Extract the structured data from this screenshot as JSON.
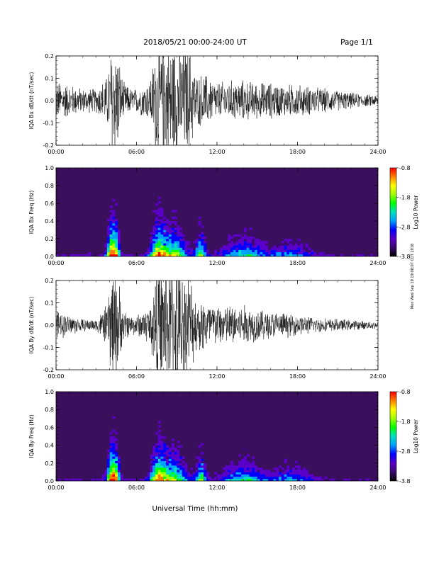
{
  "header": {
    "title": "2018/05/21  00:00-24:00 UT",
    "page": "Page 1/1"
  },
  "footer": {
    "xlabel": "Universal Time (hh:mm)"
  },
  "side_stamp": "Mon Wed Sep 19 19:08:07 CDT 2018",
  "colors": {
    "trace": "#000000",
    "spectrogram_background": "#3a0f5c",
    "colormap": [
      "#000000",
      "#3a0a6e",
      "#5a00c8",
      "#0000ff",
      "#00a0ff",
      "#00e0c0",
      "#00ff00",
      "#a0ff00",
      "#ffff00",
      "#ff8000",
      "#ff0000"
    ]
  },
  "chart_data": [
    {
      "type": "line",
      "name": "bx-dbdt",
      "ylabel": "IQA Bx dB/dt (nT/sec)",
      "ylim": [
        -0.2,
        0.2
      ],
      "yticks": [
        "-0.2",
        "-0.1",
        "0.0",
        "0.1",
        "0.2"
      ],
      "xlim": [
        0,
        24
      ],
      "xticks": [
        "00:00",
        "06:00",
        "12:00",
        "18:00",
        "24:00"
      ],
      "envelope": {
        "x_hours": [
          0,
          1,
          2,
          3,
          3.8,
          4.2,
          4.6,
          5,
          5.6,
          6,
          7,
          7.5,
          8,
          9,
          10,
          10.5,
          11,
          12,
          13,
          14,
          15,
          16,
          17,
          18,
          19,
          20,
          21,
          22,
          23,
          24
        ],
        "amplitude": [
          0.1,
          0.08,
          0.06,
          0.06,
          0.12,
          0.3,
          0.25,
          0.09,
          0.06,
          0.06,
          0.1,
          0.3,
          0.3,
          0.3,
          0.25,
          0.12,
          0.14,
          0.09,
          0.1,
          0.1,
          0.09,
          0.09,
          0.08,
          0.08,
          0.07,
          0.06,
          0.05,
          0.04,
          0.03,
          0.03
        ]
      }
    },
    {
      "type": "heatmap",
      "name": "bx-freq",
      "ylabel": "IQA Bx Freq (Hz)",
      "ylim": [
        0.0,
        1.0
      ],
      "yticks": [
        "0.0",
        "0.2",
        "0.4",
        "0.6",
        "0.8",
        "1.0"
      ],
      "xlim": [
        0,
        24
      ],
      "xticks": [
        "00:00",
        "06:00",
        "12:00",
        "18:00",
        "24:00"
      ],
      "colorbar": {
        "label": "Log10 Power",
        "range": [
          -3.8,
          -0.8
        ],
        "ticks": [
          "-0.8",
          "-1.8",
          "-2.8",
          "-3.8"
        ]
      }
    },
    {
      "type": "line",
      "name": "by-dbdt",
      "ylabel": "IQA By dB/dt (nT/sec)",
      "ylim": [
        -0.2,
        0.2
      ],
      "yticks": [
        "-0.2",
        "-0.1",
        "0.0",
        "0.1",
        "0.2"
      ],
      "xlim": [
        0,
        24
      ],
      "xticks": [
        "00:00",
        "06:00",
        "12:00",
        "18:00",
        "24:00"
      ],
      "envelope": {
        "x_hours": [
          0,
          1,
          2,
          3,
          3.8,
          4.2,
          4.6,
          5,
          5.6,
          6,
          7,
          7.5,
          8,
          9,
          10,
          10.5,
          11,
          12,
          13,
          14,
          15,
          16,
          17,
          18,
          19,
          20,
          21,
          22,
          23,
          24
        ],
        "amplitude": [
          0.07,
          0.05,
          0.03,
          0.03,
          0.1,
          0.3,
          0.25,
          0.08,
          0.05,
          0.05,
          0.1,
          0.3,
          0.3,
          0.3,
          0.25,
          0.12,
          0.14,
          0.1,
          0.1,
          0.1,
          0.08,
          0.07,
          0.06,
          0.05,
          0.04,
          0.035,
          0.03,
          0.025,
          0.02,
          0.02
        ]
      }
    },
    {
      "type": "heatmap",
      "name": "by-freq",
      "ylabel": "IQA By Freq (Hz)",
      "ylim": [
        0.0,
        1.0
      ],
      "yticks": [
        "0.0",
        "0.2",
        "0.4",
        "0.6",
        "0.8",
        "1.0"
      ],
      "xlim": [
        0,
        24
      ],
      "xticks": [
        "00:00",
        "06:00",
        "12:00",
        "18:00",
        "24:00"
      ],
      "colorbar": {
        "label": "Log10 Power",
        "range": [
          -3.8,
          -0.8
        ],
        "ticks": [
          "-0.8",
          "-1.8",
          "-2.8",
          "-3.8"
        ]
      }
    }
  ]
}
